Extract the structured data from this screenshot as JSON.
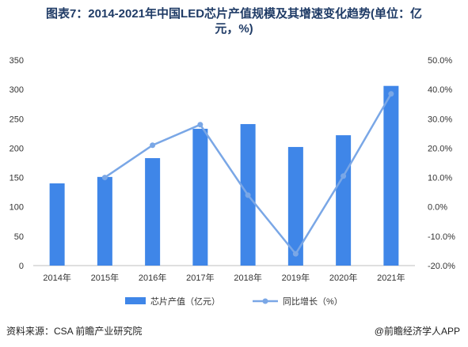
{
  "title_line1": "图表7：2014-2021年中国LED芯片产值规模及其增速变化趋势(单位：亿",
  "title_line2": "元，%)",
  "source": "资料来源：CSA 前瞻产业研究院",
  "brand": "@前瞻经济学人APP",
  "colors": {
    "bar": "#3f86e8",
    "line": "#7aa7e6",
    "text": "#333333",
    "title": "#1f3b66"
  },
  "chart_data": {
    "type": "bar",
    "categories": [
      "2014年",
      "2015年",
      "2016年",
      "2017年",
      "2018年",
      "2019年",
      "2020年",
      "2021年"
    ],
    "series": [
      {
        "name": "芯片产值（亿元）",
        "type": "bar",
        "axis": "left",
        "values": [
          140,
          151,
          183,
          233,
          241,
          202,
          222,
          306
        ]
      },
      {
        "name": "同比增长（%）",
        "type": "line",
        "axis": "right",
        "values": [
          null,
          10.0,
          21.0,
          28.0,
          4.0,
          -16.0,
          10.5,
          38.5
        ]
      }
    ],
    "y_left": {
      "min": 0,
      "max": 350,
      "ticks": [
        0,
        50,
        100,
        150,
        200,
        250,
        300,
        350
      ]
    },
    "y_right": {
      "min": -20,
      "max": 50,
      "ticks": [
        "-20.0%",
        "-10.0%",
        "0.0%",
        "10.0%",
        "20.0%",
        "30.0%",
        "40.0%",
        "50.0%"
      ],
      "tick_values": [
        -20,
        -10,
        0,
        10,
        20,
        30,
        40,
        50
      ]
    },
    "legend_position": "bottom",
    "grid": false
  }
}
